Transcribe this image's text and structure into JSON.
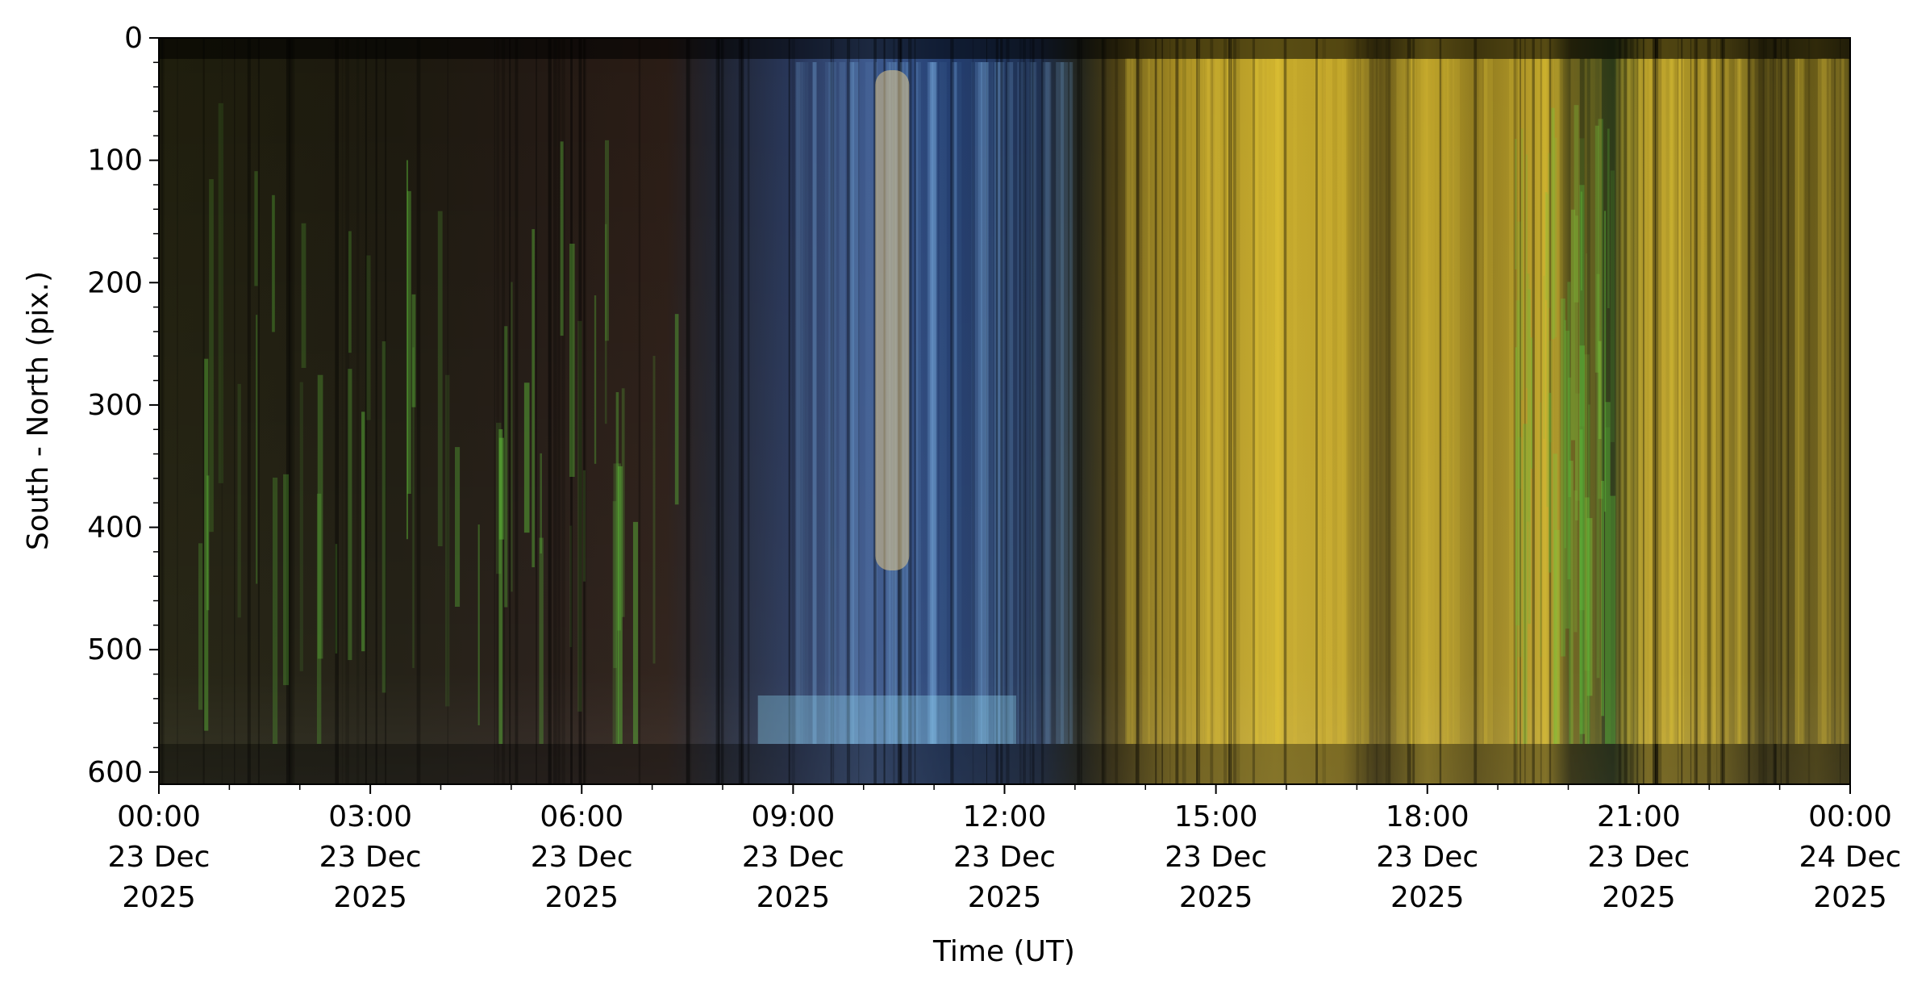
{
  "chart_data": {
    "type": "heatmap",
    "title": "",
    "xlabel": "Time (UT)",
    "ylabel": "South - North (pix.)",
    "x_range": [
      "2025-12-23T00:00",
      "2025-12-24T00:00"
    ],
    "ylim": [
      610,
      0
    ],
    "y_inverted": true,
    "grid": false,
    "colorbar": false,
    "x_ticks": [
      {
        "time": "2025-12-23T00:00",
        "label": [
          "00:00",
          "23 Dec",
          "2025"
        ]
      },
      {
        "time": "2025-12-23T03:00",
        "label": [
          "03:00",
          "23 Dec",
          "2025"
        ]
      },
      {
        "time": "2025-12-23T06:00",
        "label": [
          "06:00",
          "23 Dec",
          "2025"
        ]
      },
      {
        "time": "2025-12-23T09:00",
        "label": [
          "09:00",
          "23 Dec",
          "2025"
        ]
      },
      {
        "time": "2025-12-23T12:00",
        "label": [
          "12:00",
          "23 Dec",
          "2025"
        ]
      },
      {
        "time": "2025-12-23T15:00",
        "label": [
          "15:00",
          "23 Dec",
          "2025"
        ]
      },
      {
        "time": "2025-12-23T18:00",
        "label": [
          "18:00",
          "23 Dec",
          "2025"
        ]
      },
      {
        "time": "2025-12-23T21:00",
        "label": [
          "21:00",
          "23 Dec",
          "2025"
        ]
      },
      {
        "time": "2025-12-24T00:00",
        "label": [
          "00:00",
          "24 Dec",
          "2025"
        ]
      }
    ],
    "y_ticks": [
      {
        "value": 0,
        "label": "0"
      },
      {
        "value": 100,
        "label": "100"
      },
      {
        "value": 200,
        "label": "200"
      },
      {
        "value": 300,
        "label": "300"
      },
      {
        "value": 400,
        "label": "400"
      },
      {
        "value": 500,
        "label": "500"
      },
      {
        "value": 600,
        "label": "600"
      }
    ],
    "color_phases": [
      {
        "start": "2025-12-23T00:00",
        "end": "2025-12-23T04:30",
        "color": "#1e1c0c",
        "description": "dark with faint green streaks"
      },
      {
        "start": "2025-12-23T04:30",
        "end": "2025-12-23T08:00",
        "color": "#2a1a12",
        "description": "dark reddish-brown with green arcs"
      },
      {
        "start": "2025-12-23T08:00",
        "end": "2025-12-23T12:30",
        "color": "#1e3a5e",
        "description": "blue twilight band"
      },
      {
        "start": "2025-12-23T12:30",
        "end": "2025-12-24T00:00",
        "color": "#c9ad2a",
        "description": "yellow daylight"
      }
    ]
  }
}
